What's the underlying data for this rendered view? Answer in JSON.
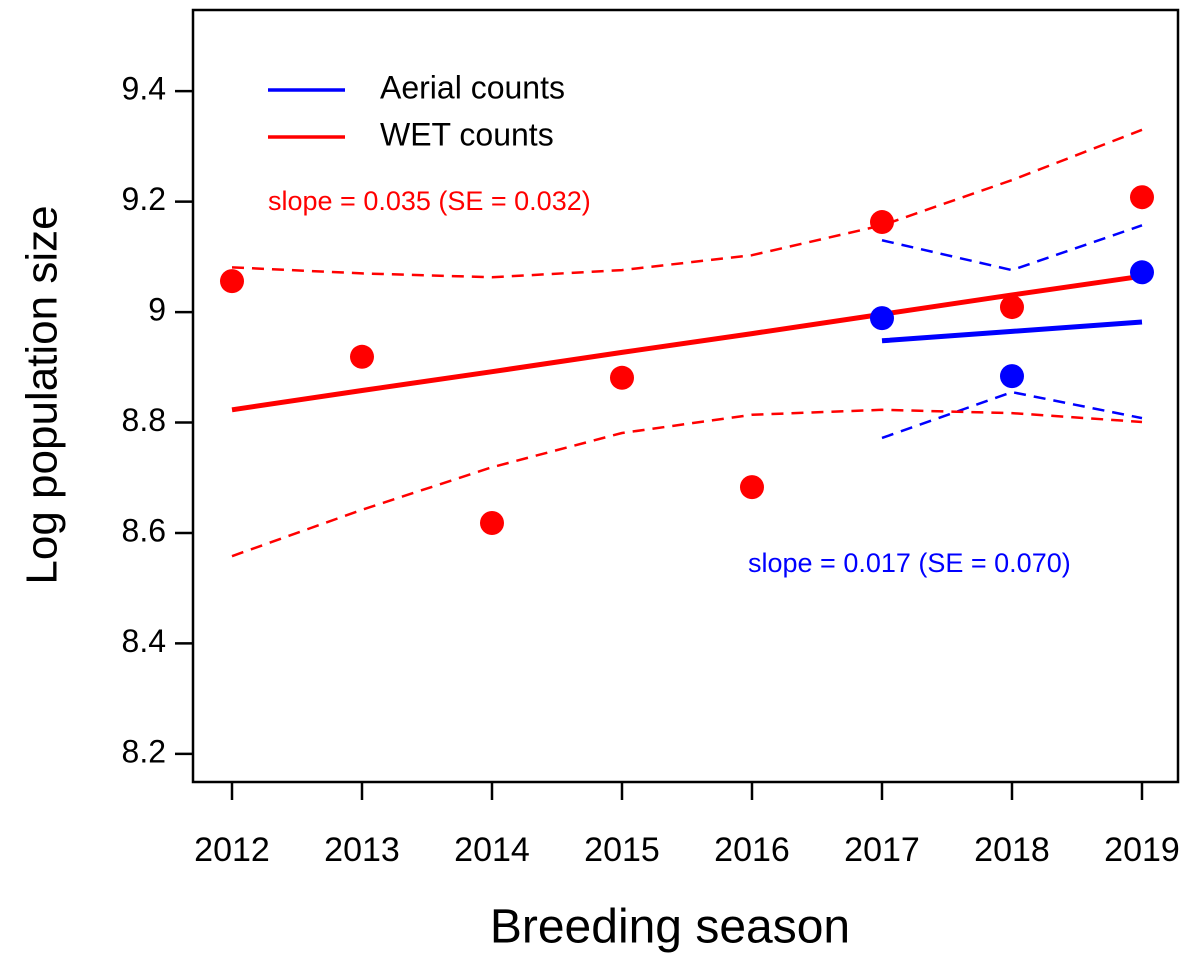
{
  "chart_data": {
    "type": "line",
    "xlabel": "Breeding season",
    "ylabel": "Log population size",
    "x": [
      2012,
      2013,
      2014,
      2015,
      2016,
      2017,
      2018,
      2019
    ],
    "xlim": [
      2011.7,
      2019.277
    ],
    "xticks": [
      2012,
      2013,
      2014,
      2015,
      2016,
      2017,
      2018,
      2019
    ],
    "ylim": [
      8.149,
      9.547
    ],
    "yticks": [
      8.2,
      8.4,
      8.6,
      8.8,
      9.0,
      9.2,
      9.4
    ],
    "legend": "top-left",
    "series": [
      {
        "name": "Aerial counts",
        "color": "#0000ff",
        "values": [
          null,
          null,
          null,
          null,
          null,
          8.989,
          8.884,
          9.072
        ],
        "fit": [
          null,
          null,
          null,
          null,
          null,
          8.948,
          8.965,
          8.982
        ],
        "lower": [
          null,
          null,
          null,
          null,
          null,
          8.772,
          8.855,
          8.808
        ],
        "upper": [
          null,
          null,
          null,
          null,
          null,
          9.13,
          9.076,
          9.157
        ],
        "annotation": "slope = 0.017 (SE = 0.070)"
      },
      {
        "name": "WET counts",
        "color": "#ff0000",
        "values": [
          9.056,
          8.919,
          8.618,
          8.881,
          8.683,
          9.163,
          9.009,
          9.208
        ],
        "fit": [
          8.823,
          8.858,
          8.892,
          8.927,
          8.961,
          8.996,
          9.031,
          9.065
        ],
        "lower": [
          8.558,
          8.642,
          8.719,
          8.781,
          8.814,
          8.823,
          8.817,
          8.801
        ],
        "upper": [
          9.081,
          9.07,
          9.063,
          9.076,
          9.103,
          9.157,
          9.239,
          9.33
        ],
        "annotation": "slope = 0.035 (SE = 0.032)"
      }
    ]
  }
}
